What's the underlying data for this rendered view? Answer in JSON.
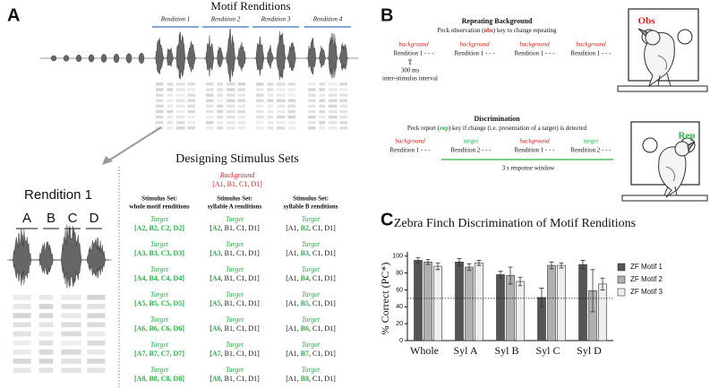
{
  "panel_a": {
    "letter": "A",
    "title": "Motif Renditions",
    "renditions": [
      "Rendition 1",
      "Rendition 2",
      "Rendition 3",
      "Rendition 4"
    ],
    "zoom_title": "Rendition 1",
    "syllables": [
      "A",
      "B",
      "C",
      "D"
    ],
    "sets_title": "Designing Stimulus Sets",
    "background_label": "Background",
    "background_set": "[A1, B1, C1, D1]",
    "target_label": "Target",
    "columns": [
      {
        "header": [
          "Stimulus Set:",
          "whole motif renditions"
        ],
        "highlight": 0,
        "cells": [
          [
            "[A2, B2, C2, D2]"
          ],
          [
            "[A3, B3, C3, D3]"
          ],
          [
            "[A4, B4, C4, D4]"
          ],
          [
            "[A5, B5, C5, D5]"
          ],
          [
            "[A6, B6, C6, D6]"
          ],
          [
            "[A7, B7, C7, D7]"
          ],
          [
            "[A8, B8, C8, D8]"
          ]
        ]
      },
      {
        "header": [
          "Stimulus Set:",
          "syllable A renditions"
        ],
        "highlight": 1,
        "cells": [
          [
            "[",
            "A2",
            ", B1, C1, D1]"
          ],
          [
            "[",
            "A3",
            ", B1, C1, D1]"
          ],
          [
            "[",
            "A4",
            ", B1, C1, D1]"
          ],
          [
            "[",
            "A5",
            ", B1, C1, D1]"
          ],
          [
            "[",
            "A6",
            ", B1, C1, D1]"
          ],
          [
            "[",
            "A7",
            ", B1, C1, D1]"
          ],
          [
            "[",
            "A8",
            ", B1, C1, D1]"
          ]
        ]
      },
      {
        "header": [
          "Stimulus Set:",
          "syllable B renditions"
        ],
        "highlight": 1,
        "cells": [
          [
            "[A1, ",
            "B2",
            ", C1, D1]"
          ],
          [
            "[A1, ",
            "B3",
            ", C1, D1]"
          ],
          [
            "[A1, ",
            "B4",
            ", C1, D1]"
          ],
          [
            "[A1, ",
            "B5",
            ", C1, D1]"
          ],
          [
            "[A1, ",
            "B6",
            ", C1, D1]"
          ],
          [
            "[A1, ",
            "B7",
            ", C1, D1]"
          ],
          [
            "[A1, ",
            "B8",
            ", C1, D1]"
          ]
        ]
      }
    ]
  },
  "panel_b": {
    "letter": "B",
    "repeating": {
      "title": "Repeating Background",
      "instruction": [
        "Peck observation (",
        "obs",
        ") key to change repeating"
      ],
      "highlight": 1,
      "highlight_color": "#e0201b",
      "items": [
        {
          "label": "background",
          "text": "Rendition 1 - - -",
          "color": "#e0201b"
        },
        {
          "label": "background",
          "text": "Rendition 1 - - -",
          "color": "#e0201b"
        },
        {
          "label": "background",
          "text": "Rendition 1 - - -",
          "color": "#e0201b"
        },
        {
          "label": "background",
          "text": "Rendition 1 - - -",
          "color": "#e0201b"
        }
      ],
      "arrow": "⇧",
      "interval": "300 ms",
      "interval_label": "inter-stimulus interval",
      "key": "Obs"
    },
    "discrimination": {
      "title": "Discrimination",
      "instruction": [
        "Peck report (",
        "rep",
        ") key if change (i.e. presentation of a target) is detected"
      ],
      "highlight": 1,
      "highlight_color": "#2bb04a",
      "items": [
        {
          "label": "background",
          "text": "Rendition 1 - - -",
          "color": "#e0201b"
        },
        {
          "label": "target",
          "text": "Rendition 2 - - -",
          "color": "#2bb04a"
        },
        {
          "label": "background",
          "text": "Rendition 1 - - -",
          "color": "#e0201b"
        },
        {
          "label": "target",
          "text": "Rendition 2 - - -",
          "color": "#2bb04a"
        }
      ],
      "window_label": "3 s response window",
      "key": "Rep"
    }
  },
  "chart_data": {
    "type": "bar",
    "letter": "C",
    "title": "Zebra Finch Discrimination of Motif Renditions",
    "y_label": "% Correct (PC*)",
    "categories": [
      "Whole",
      "Syl A",
      "Syl B",
      "Syl C",
      "Syl D"
    ],
    "series": [
      {
        "name": "ZF Motif 1",
        "color": "#555555",
        "values": [
          95,
          93,
          78,
          51,
          90
        ],
        "errors": [
          3,
          4,
          4,
          11,
          5
        ]
      },
      {
        "name": "ZF Motif 2",
        "color": "#b0b0b0",
        "values": [
          93,
          87,
          77,
          89,
          59
        ],
        "errors": [
          3,
          4,
          10,
          4,
          25
        ]
      },
      {
        "name": "ZF Motif 3",
        "color": "#eeeeee",
        "values": [
          88,
          92,
          70,
          89,
          67
        ],
        "errors": [
          4,
          3,
          5,
          3,
          7
        ]
      }
    ],
    "ylim": [
      0,
      105
    ],
    "yticks": [
      0,
      20,
      40,
      60,
      80,
      100
    ],
    "reference_line": 50,
    "legend": "upper right"
  }
}
